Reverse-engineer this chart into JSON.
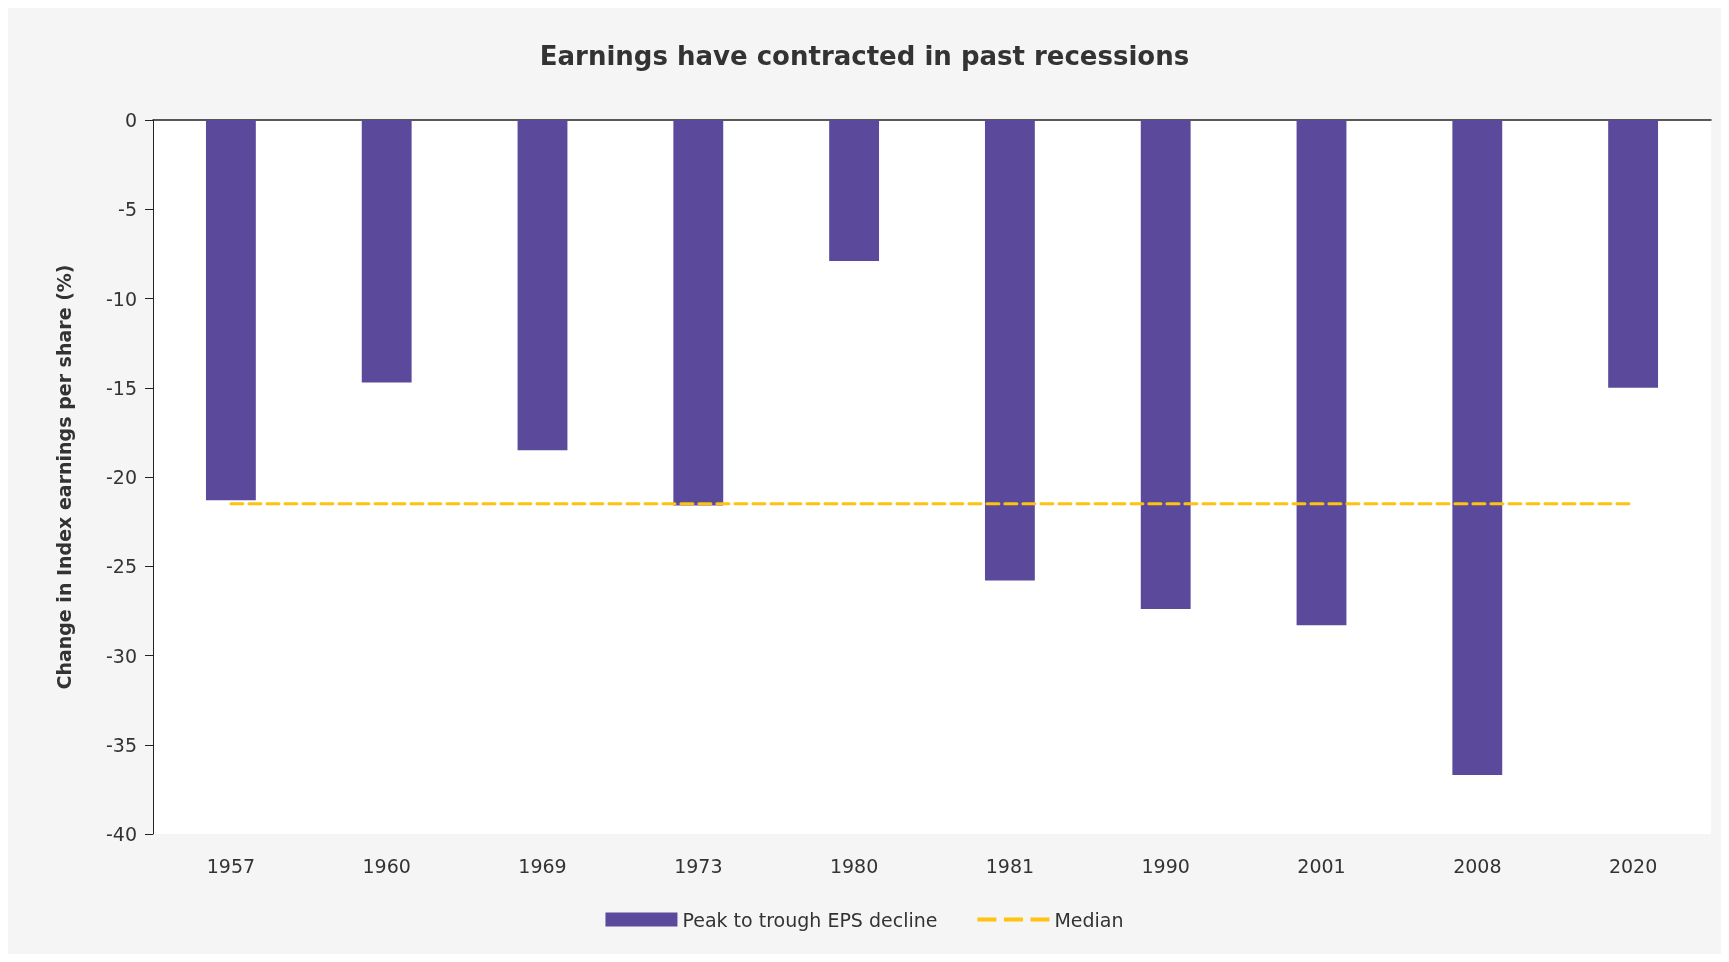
{
  "chart_data": {
    "type": "bar",
    "title": "Earnings have contracted in past recessions",
    "ylabel": "Change in Index earnings per share (%)",
    "categories": [
      "1957",
      "1960",
      "1969",
      "1973",
      "1980",
      "1981",
      "1990",
      "2001",
      "2008",
      "2020"
    ],
    "series": [
      {
        "name": "Peak to trough EPS decline",
        "color": "#5b4a9b",
        "values": [
          -21.3,
          -14.7,
          -18.5,
          -21.6,
          -7.9,
          -25.8,
          -27.4,
          -28.3,
          -36.7,
          -15.0
        ]
      },
      {
        "name": "Median",
        "type": "line",
        "color": "#ffc20e",
        "line_style": "dashed",
        "marker": "none",
        "values": [
          -21.5,
          -21.5,
          -21.5,
          -21.5,
          -21.5,
          -21.5,
          -21.5,
          -21.5,
          -21.5,
          -21.5
        ]
      }
    ],
    "ylim": [
      -40,
      0
    ],
    "yticks": [
      -40,
      -35,
      -30,
      -25,
      -20,
      -15,
      -10,
      -5,
      0
    ],
    "grid": false,
    "legend": "bottom"
  }
}
